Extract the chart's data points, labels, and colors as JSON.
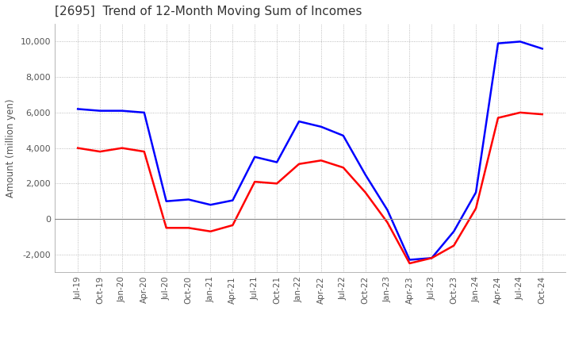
{
  "title": "[2695]  Trend of 12-Month Moving Sum of Incomes",
  "ylabel": "Amount (million yen)",
  "ylim": [
    -3000,
    11000
  ],
  "yticks": [
    -2000,
    0,
    2000,
    4000,
    6000,
    8000,
    10000
  ],
  "x_labels": [
    "Jul-19",
    "Oct-19",
    "Jan-20",
    "Apr-20",
    "Jul-20",
    "Oct-20",
    "Jan-21",
    "Apr-21",
    "Jul-21",
    "Oct-21",
    "Jan-22",
    "Apr-22",
    "Jul-22",
    "Oct-22",
    "Jan-23",
    "Apr-23",
    "Jul-23",
    "Oct-23",
    "Jan-24",
    "Apr-24",
    "Jul-24",
    "Oct-24"
  ],
  "ordinary_income": [
    6200,
    6100,
    6100,
    6000,
    1000,
    1100,
    800,
    1050,
    3500,
    3200,
    5500,
    5200,
    4700,
    2500,
    500,
    -2300,
    -2200,
    -700,
    1500,
    9900,
    10000,
    9600
  ],
  "net_income": [
    4000,
    3800,
    4000,
    3800,
    -500,
    -500,
    -700,
    -350,
    2100,
    2000,
    3100,
    3300,
    2900,
    1500,
    -200,
    -2500,
    -2200,
    -1500,
    600,
    5700,
    6000,
    5900
  ],
  "ordinary_color": "#0000ff",
  "net_color": "#ff0000",
  "background_color": "#ffffff",
  "grid_color": "#aaaaaa",
  "zero_line_color": "#888888",
  "title_color": "#333333",
  "label_color": "#555555",
  "legend_label_color": "#333333"
}
